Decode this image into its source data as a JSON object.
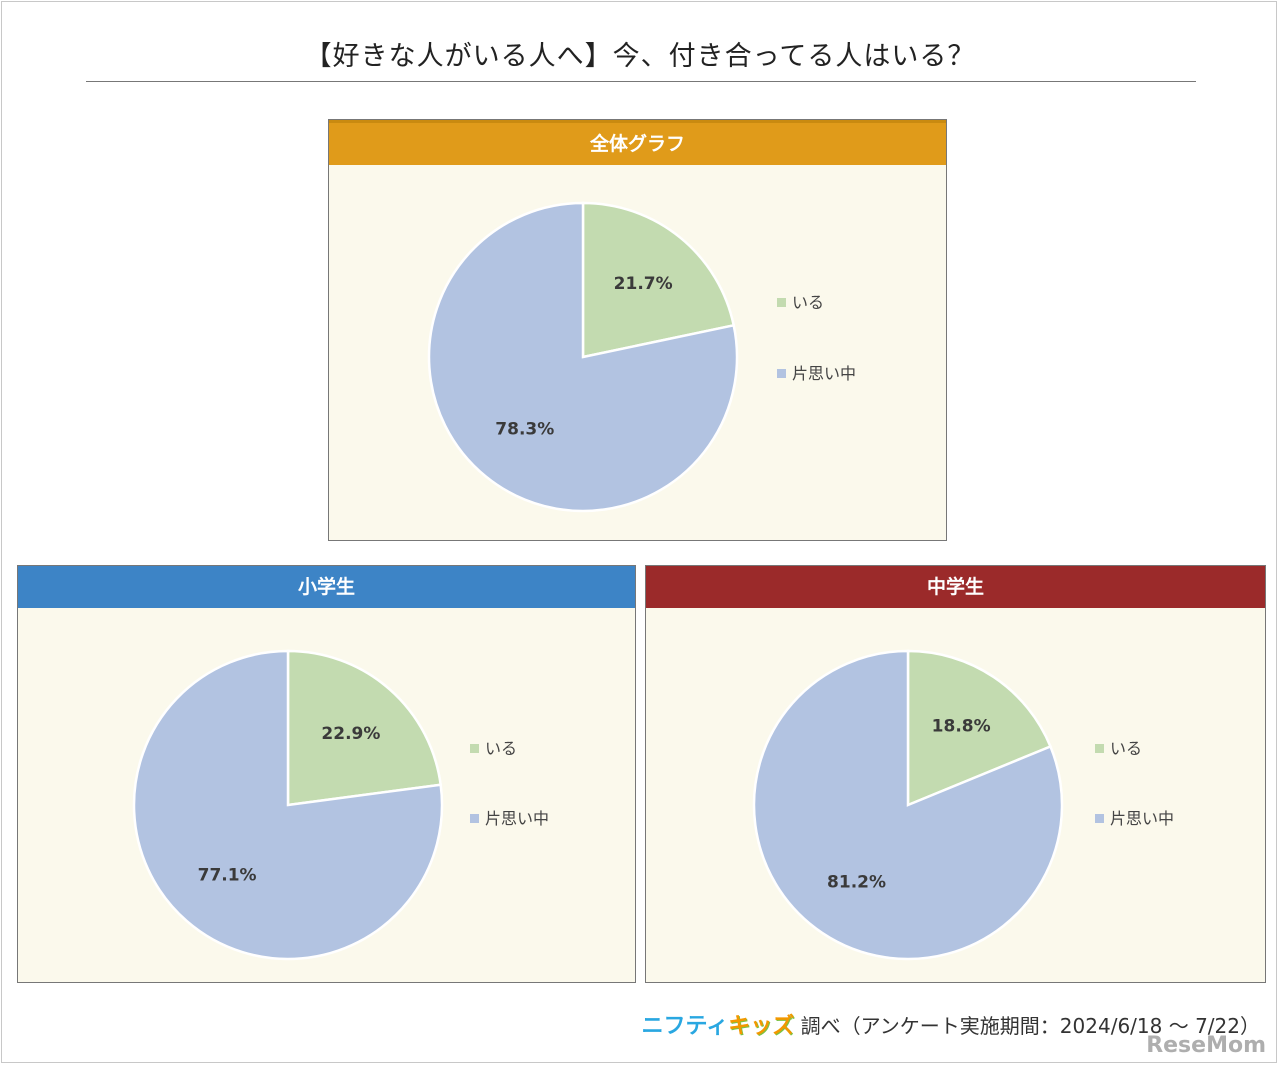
{
  "title": "【好きな人がいる人へ】今、付き合ってる人はいる？",
  "colors": {
    "iru": "#c3dbb0",
    "kataomoi": "#b2c3e1",
    "header_overall": "#e09b1a",
    "header_elementary": "#3d84c6",
    "header_junior": "#9b2a2a",
    "panel_bg": "#fbf9ec"
  },
  "chart_data": [
    {
      "type": "pie",
      "title": "全体グラフ",
      "categories": [
        "いる",
        "片思い中"
      ],
      "values": [
        21.7,
        78.3
      ],
      "labels": [
        "21.7%",
        "78.3%"
      ],
      "legend_position": "right"
    },
    {
      "type": "pie",
      "title": "小学生",
      "categories": [
        "いる",
        "片思い中"
      ],
      "values": [
        22.9,
        77.1
      ],
      "labels": [
        "22.9%",
        "77.1%"
      ],
      "legend_position": "right"
    },
    {
      "type": "pie",
      "title": "中学生",
      "categories": [
        "いる",
        "片思い中"
      ],
      "values": [
        18.8,
        81.2
      ],
      "labels": [
        "18.8%",
        "81.2%"
      ],
      "legend_position": "right"
    }
  ],
  "footer": {
    "brand_part1": "ニフティ",
    "brand_part2": "キッズ",
    "text": "調べ（アンケート実施期間：2024/6/18 ～ 7/22）"
  },
  "watermark": "ReseMom"
}
